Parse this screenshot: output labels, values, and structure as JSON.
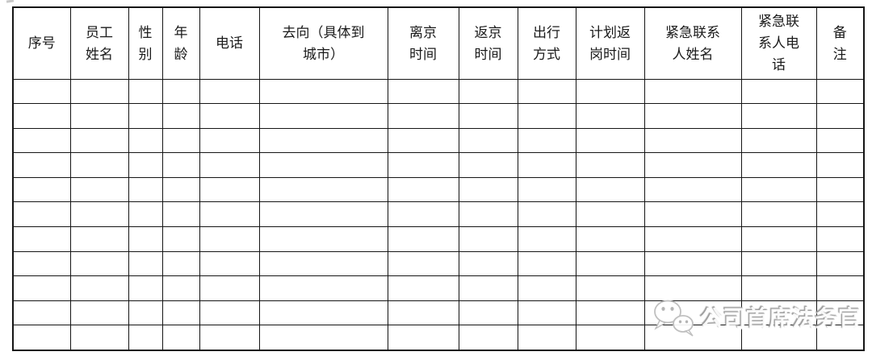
{
  "table": {
    "columns": [
      {
        "key": "serial-number",
        "label": "序号"
      },
      {
        "key": "employee-name",
        "label": "员工\n姓名"
      },
      {
        "key": "gender",
        "label": "性\n别"
      },
      {
        "key": "age",
        "label": "年\n龄"
      },
      {
        "key": "phone",
        "label": "电话"
      },
      {
        "key": "destination-city",
        "label": "去向（具体到\n城市）"
      },
      {
        "key": "leave-beijing-time",
        "label": "离京\n时间"
      },
      {
        "key": "return-beijing-time",
        "label": "返京\n时间"
      },
      {
        "key": "travel-mode",
        "label": "出行\n方式"
      },
      {
        "key": "planned-return-to-work-time",
        "label": "计划返\n岗时间"
      },
      {
        "key": "emergency-contact-name",
        "label": "紧急联系\n人姓名"
      },
      {
        "key": "emergency-contact-phone",
        "label": "紧急联\n系人电\n话"
      },
      {
        "key": "remarks",
        "label": "备\n注"
      }
    ],
    "body_row_count": 11,
    "body_cells_empty": true
  },
  "watermark": {
    "icon": "wechat-chat-bubbles-icon",
    "text": "公司首席法务官"
  },
  "colors": {
    "page_background": "#ffffff",
    "grid_border": "#151515",
    "header_text": "#1a1a1a",
    "watermark_gray": "#949494"
  }
}
